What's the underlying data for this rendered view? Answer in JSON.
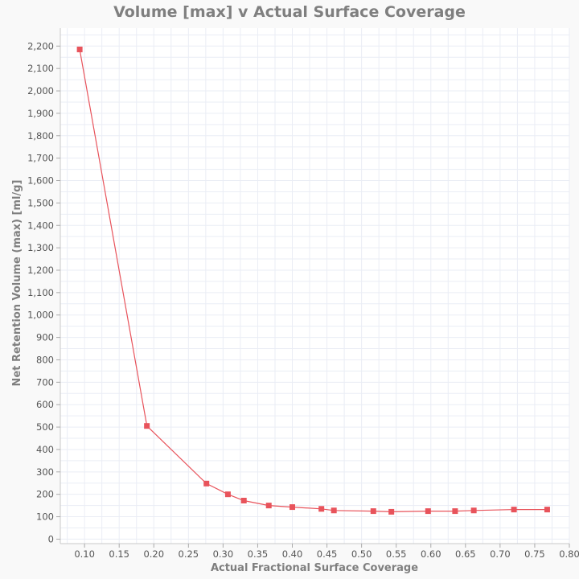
{
  "chart_data": {
    "type": "line",
    "title": "Volume [max] v Actual Surface Coverage",
    "xlabel": "Actual Fractional Surface Coverage",
    "ylabel": "Net Retention Volume (max) [ml/g]",
    "xlim": [
      0.065,
      0.8
    ],
    "ylim": [
      -20,
      2280
    ],
    "x_ticks": [
      "0.10",
      "0.15",
      "0.20",
      "0.25",
      "0.30",
      "0.35",
      "0.40",
      "0.45",
      "0.50",
      "0.55",
      "0.60",
      "0.65",
      "0.70",
      "0.75",
      "0.80"
    ],
    "y_ticks": [
      "0",
      "100",
      "200",
      "300",
      "400",
      "500",
      "600",
      "700",
      "800",
      "900",
      "1,000",
      "1,100",
      "1,200",
      "1,300",
      "1,400",
      "1,500",
      "1,600",
      "1,700",
      "1,800",
      "1,900",
      "2,000",
      "2,100",
      "2,200"
    ],
    "grid": true,
    "series": [
      {
        "color": "#e8535b",
        "marker": "square",
        "x": [
          0.093,
          0.19,
          0.276,
          0.307,
          0.33,
          0.366,
          0.4,
          0.442,
          0.46,
          0.517,
          0.543,
          0.596,
          0.635,
          0.662,
          0.72,
          0.768
        ],
        "y": [
          2185,
          505,
          248,
          200,
          172,
          150,
          143,
          135,
          128,
          125,
          122,
          125,
          125,
          128,
          132,
          132
        ]
      }
    ]
  }
}
